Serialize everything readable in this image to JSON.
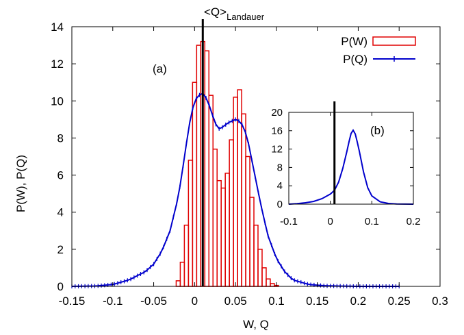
{
  "chart_data": [
    {
      "type": "bar",
      "panel_label": "(a)",
      "xlabel": "W, Q",
      "ylabel": "P(W), P(Q)",
      "xlim": [
        -0.15,
        0.3
      ],
      "ylim": [
        0,
        14
      ],
      "xticks": [
        "-0.15",
        "-0.1",
        "-0.05",
        "0",
        "0.05",
        "0.1",
        "0.15",
        "0.2",
        "0.25",
        "0.3"
      ],
      "yticks": [
        "0",
        "2",
        "4",
        "6",
        "8",
        "10",
        "12",
        "14"
      ],
      "grid": false,
      "legend_position": "top-right",
      "annotation": {
        "text": "<Q>",
        "subscript": "Landauer",
        "x": 0.01
      },
      "series": [
        {
          "name": "P(W)",
          "style": "histogram",
          "color": "#e00000",
          "bin_width": 0.005,
          "x": [
            -0.02,
            -0.015,
            -0.01,
            -0.005,
            0,
            0.005,
            0.01,
            0.015,
            0.02,
            0.025,
            0.03,
            0.035,
            0.04,
            0.045,
            0.05,
            0.055,
            0.06,
            0.065,
            0.07,
            0.075,
            0.08,
            0.085,
            0.09,
            0.095,
            0.1
          ],
          "values": [
            0.3,
            1.3,
            3.3,
            6.8,
            11.0,
            13.0,
            13.2,
            12.7,
            10.3,
            7.4,
            5.7,
            5.3,
            6.1,
            7.9,
            10.2,
            10.6,
            9.3,
            7.0,
            4.8,
            3.3,
            2.0,
            1.0,
            0.4,
            0.15,
            0.05
          ]
        },
        {
          "name": "P(Q)",
          "style": "line-points",
          "color": "#0000cc",
          "x": [
            -0.15,
            -0.12,
            -0.1,
            -0.08,
            -0.06,
            -0.05,
            -0.04,
            -0.03,
            -0.02,
            -0.015,
            -0.01,
            -0.005,
            0,
            0.005,
            0.01,
            0.015,
            0.02,
            0.025,
            0.03,
            0.035,
            0.04,
            0.045,
            0.05,
            0.055,
            0.06,
            0.065,
            0.07,
            0.075,
            0.08,
            0.085,
            0.09,
            0.1,
            0.11,
            0.12,
            0.14,
            0.16,
            0.2,
            0.25
          ],
          "values": [
            0,
            0.02,
            0.1,
            0.35,
            0.8,
            1.2,
            1.9,
            3.0,
            4.8,
            6.2,
            7.7,
            9.1,
            10.0,
            10.3,
            10.4,
            10.1,
            9.5,
            8.8,
            8.5,
            8.6,
            8.8,
            8.9,
            9.0,
            8.9,
            8.6,
            7.9,
            6.8,
            5.7,
            4.6,
            3.6,
            2.7,
            1.5,
            0.8,
            0.35,
            0.1,
            0.03,
            0,
            0
          ]
        }
      ]
    },
    {
      "type": "line",
      "panel_label": "(b)",
      "xlim": [
        -0.1,
        0.2
      ],
      "ylim": [
        0,
        20
      ],
      "xticks": [
        "-0.1",
        "0",
        "0.1",
        "0.2"
      ],
      "yticks": [
        "0",
        "4",
        "8",
        "12",
        "16",
        "20"
      ],
      "vline_x": 0.01,
      "series": [
        {
          "color": "#0000cc",
          "x": [
            -0.1,
            -0.08,
            -0.06,
            -0.04,
            -0.02,
            0,
            0.01,
            0.02,
            0.03,
            0.04,
            0.045,
            0.05,
            0.055,
            0.06,
            0.065,
            0.07,
            0.08,
            0.09,
            0.1,
            0.12,
            0.14,
            0.16,
            0.2
          ],
          "values": [
            0,
            0.1,
            0.3,
            0.6,
            1.2,
            2.2,
            3.0,
            4.8,
            7.8,
            11.5,
            13.6,
            15.4,
            16.1,
            15.3,
            13.5,
            11.5,
            7.0,
            3.6,
            1.8,
            0.5,
            0.15,
            0.05,
            0
          ]
        }
      ]
    }
  ]
}
